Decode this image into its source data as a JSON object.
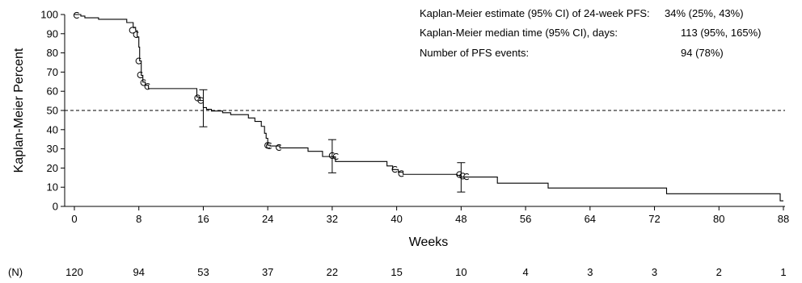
{
  "chart_data": {
    "type": "line",
    "subtype": "kaplan-meier",
    "title": "",
    "xlabel": "Weeks",
    "ylabel": "Kaplan-Meier Percent",
    "xlim": [
      0,
      88
    ],
    "ylim": [
      0,
      100
    ],
    "xticks": [
      0,
      8,
      16,
      24,
      32,
      40,
      48,
      56,
      64,
      72,
      80,
      88
    ],
    "yticks": [
      0,
      10,
      20,
      30,
      40,
      50,
      60,
      70,
      80,
      90,
      100
    ],
    "grid": false,
    "reference_line": {
      "y": 50,
      "style": "dashed"
    },
    "step": [
      [
        0,
        100
      ],
      [
        0.8,
        99.2
      ],
      [
        1.3,
        98.3
      ],
      [
        3,
        97.5
      ],
      [
        6.5,
        95.8
      ],
      [
        7.3,
        93.3
      ],
      [
        7.6,
        91.6
      ],
      [
        7.8,
        88.3
      ],
      [
        8.0,
        83
      ],
      [
        8.1,
        75.8
      ],
      [
        8.3,
        68.3
      ],
      [
        8.5,
        64.8
      ],
      [
        8.8,
        63.1
      ],
      [
        9.2,
        61.4
      ],
      [
        15.2,
        57
      ],
      [
        15.6,
        55.2
      ],
      [
        16.0,
        51.5
      ],
      [
        16.4,
        50.6
      ],
      [
        17,
        49.7
      ],
      [
        18.4,
        48.8
      ],
      [
        19.4,
        47.8
      ],
      [
        21.6,
        46.1
      ],
      [
        22.4,
        44.3
      ],
      [
        23.2,
        41.7
      ],
      [
        23.6,
        38.1
      ],
      [
        23.8,
        35.5
      ],
      [
        24.0,
        31.9
      ],
      [
        24.3,
        31.5
      ],
      [
        25.5,
        30.5
      ],
      [
        29.0,
        28.7
      ],
      [
        30.8,
        26.0
      ],
      [
        32.0,
        25.8
      ],
      [
        32.4,
        23.4
      ],
      [
        38.8,
        21.1
      ],
      [
        39.5,
        19.2
      ],
      [
        40.2,
        17.8
      ],
      [
        40.8,
        16.7
      ],
      [
        47.5,
        16.2
      ],
      [
        48.0,
        15.3
      ],
      [
        52.5,
        12.1
      ],
      [
        58.8,
        9.6
      ],
      [
        73.5,
        6.6
      ],
      [
        87.6,
        2.9
      ],
      [
        88.0,
        2.9
      ]
    ],
    "censored": [
      [
        0.3,
        99.6
      ],
      [
        7.2,
        91.8
      ],
      [
        7.7,
        89.5
      ],
      [
        8.0,
        75.8
      ],
      [
        8.2,
        68.5
      ],
      [
        8.6,
        64.5
      ],
      [
        9.1,
        62.5
      ],
      [
        15.3,
        56.5
      ],
      [
        15.7,
        55.2
      ],
      [
        24.0,
        31.8
      ],
      [
        24.2,
        31.6
      ],
      [
        25.4,
        30.7
      ],
      [
        32.0,
        26.5
      ],
      [
        32.5,
        26.0
      ],
      [
        39.8,
        19.3
      ],
      [
        40.6,
        17.1
      ],
      [
        47.8,
        16.6
      ],
      [
        48.2,
        15.8
      ],
      [
        48.7,
        15.5
      ]
    ],
    "error_bars": [
      {
        "x": 16,
        "low": 41.5,
        "high": 60.8
      },
      {
        "x": 32,
        "low": 17.5,
        "high": 34.8
      },
      {
        "x": 48,
        "low": 7.5,
        "high": 22.8
      }
    ],
    "stats": [
      {
        "label": "Kaplan-Meier estimate (95% CI) of 24-week PFS:",
        "value": "34% (25%, 43%)"
      },
      {
        "label": "Kaplan-Meier median time (95% CI), days:",
        "value": "113 (95%, 165%)"
      },
      {
        "label": "Number of PFS events:",
        "value": "94 (78%)"
      }
    ],
    "number_at_risk": {
      "label": "(N)",
      "x": [
        0,
        8,
        16,
        24,
        32,
        40,
        48,
        56,
        64,
        72,
        80,
        88
      ],
      "values": [
        "120",
        "94",
        "53",
        "37",
        "22",
        "15",
        "10",
        "4",
        "3",
        "3",
        "2",
        "1"
      ]
    }
  }
}
